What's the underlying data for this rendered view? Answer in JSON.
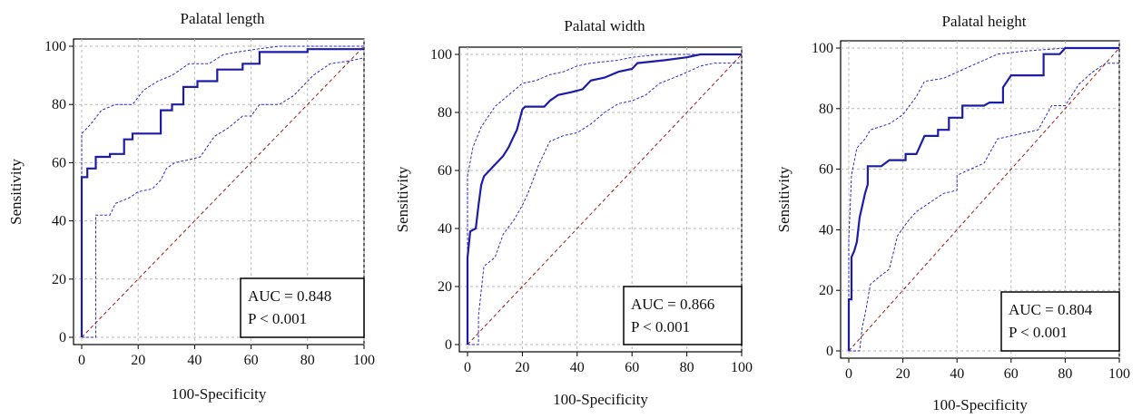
{
  "chart_data": [
    {
      "type": "line",
      "title": "Palatal length",
      "xlabel": "100-Specificity",
      "ylabel": "Sensitivity",
      "xlim": [
        0,
        100
      ],
      "ylim": [
        0,
        100
      ],
      "xticks": [
        "0",
        "20",
        "40",
        "60",
        "80",
        "100"
      ],
      "yticks": [
        "0",
        "20",
        "40",
        "60",
        "80",
        "100"
      ],
      "grid": true,
      "auc_text": "AUC = 0.848",
      "p_text": "P < 0.001",
      "series": [
        {
          "role": "roc",
          "points": [
            [
              0,
              0
            ],
            [
              0,
              55
            ],
            [
              2,
              55
            ],
            [
              2,
              58
            ],
            [
              5,
              58
            ],
            [
              5,
              62
            ],
            [
              10,
              62
            ],
            [
              10,
              63
            ],
            [
              15,
              63
            ],
            [
              15,
              68
            ],
            [
              18,
              68
            ],
            [
              18,
              70
            ],
            [
              28,
              70
            ],
            [
              28,
              78
            ],
            [
              32,
              78
            ],
            [
              32,
              80
            ],
            [
              36,
              80
            ],
            [
              36,
              86
            ],
            [
              41,
              86
            ],
            [
              41,
              88
            ],
            [
              48,
              88
            ],
            [
              48,
              92
            ],
            [
              57,
              92
            ],
            [
              57,
              94
            ],
            [
              63,
              94
            ],
            [
              63,
              98
            ],
            [
              80,
              98
            ],
            [
              80,
              99
            ],
            [
              100,
              99
            ]
          ]
        },
        {
          "role": "ci-upper",
          "points": [
            [
              0,
              0
            ],
            [
              0,
              70
            ],
            [
              3,
              73
            ],
            [
              7,
              78
            ],
            [
              12,
              80
            ],
            [
              18,
              80
            ],
            [
              22,
              85
            ],
            [
              27,
              88
            ],
            [
              32,
              90
            ],
            [
              38,
              94
            ],
            [
              45,
              94
            ],
            [
              50,
              97
            ],
            [
              55,
              98
            ],
            [
              62,
              99
            ],
            [
              70,
              100
            ],
            [
              100,
              100
            ]
          ]
        },
        {
          "role": "ci-lower",
          "points": [
            [
              0,
              0
            ],
            [
              5,
              0
            ],
            [
              5,
              42
            ],
            [
              10,
              42
            ],
            [
              12,
              46
            ],
            [
              17,
              48
            ],
            [
              20,
              50
            ],
            [
              25,
              51
            ],
            [
              28,
              54
            ],
            [
              30,
              58
            ],
            [
              33,
              60
            ],
            [
              38,
              61
            ],
            [
              42,
              62
            ],
            [
              47,
              69
            ],
            [
              52,
              72
            ],
            [
              57,
              76
            ],
            [
              60,
              76
            ],
            [
              63,
              80
            ],
            [
              70,
              80
            ],
            [
              75,
              83
            ],
            [
              82,
              90
            ],
            [
              88,
              94
            ],
            [
              95,
              95
            ],
            [
              100,
              96
            ]
          ]
        },
        {
          "role": "reference",
          "points": [
            [
              0,
              0
            ],
            [
              100,
              100
            ]
          ]
        }
      ]
    },
    {
      "type": "line",
      "title": "Palatal width",
      "xlabel": "100-Specificity",
      "ylabel": "Sensitivity",
      "xlim": [
        0,
        100
      ],
      "ylim": [
        0,
        100
      ],
      "xticks": [
        "0",
        "20",
        "40",
        "60",
        "80",
        "100"
      ],
      "yticks": [
        "0",
        "20",
        "40",
        "60",
        "80",
        "100"
      ],
      "grid": true,
      "auc_text": "AUC = 0.866",
      "p_text": "P < 0.001",
      "series": [
        {
          "role": "roc",
          "points": [
            [
              0,
              0
            ],
            [
              0,
              30
            ],
            [
              1,
              39
            ],
            [
              3,
              40
            ],
            [
              4,
              48
            ],
            [
              5,
              55
            ],
            [
              6,
              58
            ],
            [
              8,
              60
            ],
            [
              10,
              62
            ],
            [
              13,
              65
            ],
            [
              15,
              68
            ],
            [
              17,
              72
            ],
            [
              18,
              74
            ],
            [
              20,
              81
            ],
            [
              21,
              82
            ],
            [
              28,
              82
            ],
            [
              30,
              84
            ],
            [
              33,
              86
            ],
            [
              38,
              87
            ],
            [
              42,
              88
            ],
            [
              45,
              91
            ],
            [
              50,
              92
            ],
            [
              55,
              94
            ],
            [
              60,
              95
            ],
            [
              62,
              97
            ],
            [
              72,
              98
            ],
            [
              80,
              99
            ],
            [
              85,
              100
            ],
            [
              100,
              100
            ]
          ]
        },
        {
          "role": "ci-upper",
          "points": [
            [
              0,
              0
            ],
            [
              0,
              58
            ],
            [
              2,
              68
            ],
            [
              5,
              75
            ],
            [
              10,
              82
            ],
            [
              15,
              86
            ],
            [
              20,
              90
            ],
            [
              25,
              91
            ],
            [
              30,
              93
            ],
            [
              35,
              94
            ],
            [
              40,
              96
            ],
            [
              45,
              97
            ],
            [
              55,
              98
            ],
            [
              60,
              99
            ],
            [
              70,
              100
            ],
            [
              100,
              100
            ]
          ]
        },
        {
          "role": "ci-lower",
          "points": [
            [
              0,
              0
            ],
            [
              4,
              0
            ],
            [
              4,
              10
            ],
            [
              6,
              27
            ],
            [
              10,
              30
            ],
            [
              13,
              38
            ],
            [
              17,
              43
            ],
            [
              20,
              48
            ],
            [
              22,
              52
            ],
            [
              26,
              62
            ],
            [
              30,
              70
            ],
            [
              35,
              72
            ],
            [
              40,
              73
            ],
            [
              45,
              76
            ],
            [
              50,
              80
            ],
            [
              55,
              83
            ],
            [
              60,
              84
            ],
            [
              65,
              86
            ],
            [
              70,
              90
            ],
            [
              78,
              93
            ],
            [
              85,
              96
            ],
            [
              90,
              97
            ],
            [
              100,
              97
            ]
          ]
        },
        {
          "role": "reference",
          "points": [
            [
              0,
              0
            ],
            [
              100,
              100
            ]
          ]
        }
      ]
    },
    {
      "type": "line",
      "title": "Palatal height",
      "xlabel": "100-Specificity",
      "ylabel": "Sensitivity",
      "xlim": [
        0,
        100
      ],
      "ylim": [
        0,
        100
      ],
      "xticks": [
        "0",
        "20",
        "40",
        "60",
        "80",
        "100"
      ],
      "yticks": [
        "0",
        "20",
        "40",
        "60",
        "80",
        "100"
      ],
      "grid": true,
      "auc_text": "AUC = 0.804",
      "p_text": "P < 0.001",
      "series": [
        {
          "role": "roc",
          "points": [
            [
              0,
              0
            ],
            [
              0,
              17
            ],
            [
              1,
              17
            ],
            [
              1,
              31
            ],
            [
              2,
              33
            ],
            [
              3,
              36
            ],
            [
              4,
              44
            ],
            [
              5,
              48
            ],
            [
              6,
              52
            ],
            [
              7,
              55
            ],
            [
              7,
              61
            ],
            [
              12,
              61
            ],
            [
              15,
              63
            ],
            [
              21,
              63
            ],
            [
              21,
              65
            ],
            [
              25,
              65
            ],
            [
              28,
              71
            ],
            [
              33,
              71
            ],
            [
              33,
              73
            ],
            [
              37,
              73
            ],
            [
              37,
              77
            ],
            [
              42,
              77
            ],
            [
              42,
              81
            ],
            [
              50,
              81
            ],
            [
              52,
              82
            ],
            [
              57,
              82
            ],
            [
              57,
              87
            ],
            [
              60,
              91
            ],
            [
              72,
              91
            ],
            [
              72,
              98
            ],
            [
              78,
              98
            ],
            [
              80,
              100
            ],
            [
              100,
              100
            ]
          ]
        },
        {
          "role": "ci-upper",
          "points": [
            [
              0,
              0
            ],
            [
              0,
              37
            ],
            [
              1,
              58
            ],
            [
              3,
              67
            ],
            [
              6,
              70
            ],
            [
              8,
              73
            ],
            [
              15,
              75
            ],
            [
              20,
              78
            ],
            [
              25,
              84
            ],
            [
              28,
              89
            ],
            [
              35,
              90
            ],
            [
              40,
              92
            ],
            [
              45,
              94
            ],
            [
              50,
              96
            ],
            [
              55,
              98
            ],
            [
              65,
              99
            ],
            [
              80,
              100
            ],
            [
              100,
              100
            ]
          ]
        },
        {
          "role": "ci-lower",
          "points": [
            [
              0,
              0
            ],
            [
              4,
              0
            ],
            [
              5,
              8
            ],
            [
              6,
              12
            ],
            [
              8,
              22
            ],
            [
              12,
              25
            ],
            [
              15,
              27
            ],
            [
              18,
              38
            ],
            [
              22,
              43
            ],
            [
              25,
              46
            ],
            [
              30,
              49
            ],
            [
              35,
              52
            ],
            [
              40,
              53
            ],
            [
              40,
              58
            ],
            [
              45,
              60
            ],
            [
              50,
              62
            ],
            [
              55,
              70
            ],
            [
              60,
              71
            ],
            [
              65,
              72
            ],
            [
              70,
              73
            ],
            [
              75,
              81
            ],
            [
              80,
              81
            ],
            [
              85,
              88
            ],
            [
              90,
              92
            ],
            [
              95,
              95
            ],
            [
              100,
              95
            ]
          ]
        },
        {
          "role": "reference",
          "points": [
            [
              0,
              0
            ],
            [
              100,
              100
            ]
          ]
        }
      ]
    }
  ]
}
